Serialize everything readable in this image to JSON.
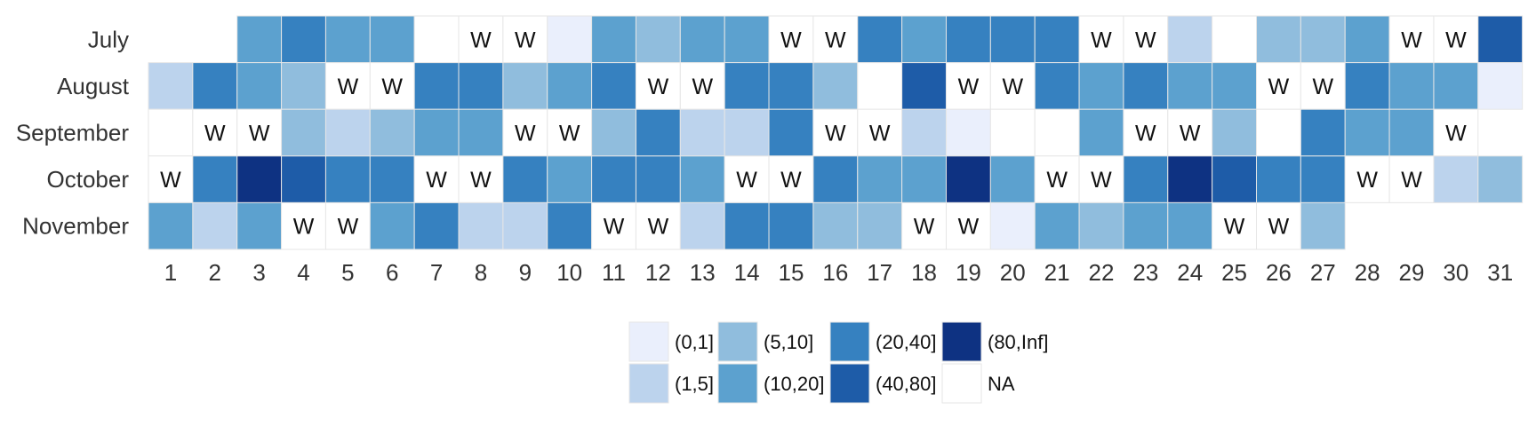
{
  "chart_data": {
    "type": "heatmap",
    "title": "",
    "xlabel": "",
    "ylabel": "",
    "months": [
      "July",
      "August",
      "September",
      "October",
      "November"
    ],
    "days": [
      1,
      2,
      3,
      4,
      5,
      6,
      7,
      8,
      9,
      10,
      11,
      12,
      13,
      14,
      15,
      16,
      17,
      18,
      19,
      20,
      21,
      22,
      23,
      24,
      25,
      26,
      27,
      28,
      29,
      30,
      31
    ],
    "weekend_marker": "W",
    "legend": {
      "bins": [
        "(0,1]",
        "(1,5]",
        "(5,10]",
        "(10,20]",
        "(20,40]",
        "(40,80]",
        "(80,Inf]",
        "NA"
      ],
      "colors": {
        "(0,1]": "#eaeffc",
        "(1,5]": "#bcd3ed",
        "(5,10]": "#90bddd",
        "(10,20]": "#5ca1cf",
        "(20,40]": "#3681c0",
        "(40,80]": "#1e5ca8",
        "(80,Inf]": "#0e3282",
        "NA": "#ffffff"
      }
    },
    "cells": {
      "July": [
        "none",
        "none",
        "(10,20]",
        "(20,40]",
        "(10,20]",
        "(10,20]",
        "NA",
        "W",
        "W",
        "(0,1]",
        "(10,20]",
        "(5,10]",
        "(10,20]",
        "(10,20]",
        "W",
        "W",
        "(20,40]",
        "(10,20]",
        "(20,40]",
        "(20,40]",
        "(20,40]",
        "W",
        "W",
        "(1,5]",
        "NA",
        "(5,10]",
        "(5,10]",
        "(10,20]",
        "W",
        "W",
        "(40,80]"
      ],
      "August": [
        "(1,5]",
        "(20,40]",
        "(10,20]",
        "(5,10]",
        "W",
        "W",
        "(20,40]",
        "(20,40]",
        "(5,10]",
        "(10,20]",
        "(20,40]",
        "W",
        "W",
        "(20,40]",
        "(20,40]",
        "(5,10]",
        "NA",
        "(40,80]",
        "W",
        "W",
        "(20,40]",
        "(10,20]",
        "(20,40]",
        "(10,20]",
        "(10,20]",
        "W",
        "W",
        "(20,40]",
        "(10,20]",
        "(10,20]",
        "(0,1]"
      ],
      "September": [
        "NA",
        "W",
        "W",
        "(5,10]",
        "(1,5]",
        "(5,10]",
        "(10,20]",
        "(10,20]",
        "W",
        "W",
        "(5,10]",
        "(20,40]",
        "(1,5]",
        "(1,5]",
        "(20,40]",
        "W",
        "W",
        "(1,5]",
        "(0,1]",
        "NA",
        "NA",
        "(10,20]",
        "W",
        "W",
        "(5,10]",
        "NA",
        "(20,40]",
        "(10,20]",
        "(10,20]",
        "W",
        "none"
      ],
      "October": [
        "W",
        "(20,40]",
        "(80,Inf]",
        "(40,80]",
        "(20,40]",
        "(20,40]",
        "W",
        "W",
        "(20,40]",
        "(10,20]",
        "(20,40]",
        "(20,40]",
        "(10,20]",
        "W",
        "W",
        "(20,40]",
        "(10,20]",
        "(10,20]",
        "(80,Inf]",
        "(10,20]",
        "W",
        "W",
        "(20,40]",
        "(80,Inf]",
        "(40,80]",
        "(20,40]",
        "(20,40]",
        "W",
        "W",
        "(1,5]",
        "(5,10]"
      ],
      "November": [
        "(10,20]",
        "(1,5]",
        "(10,20]",
        "W",
        "W",
        "(10,20]",
        "(20,40]",
        "(1,5]",
        "(1,5]",
        "(20,40]",
        "W",
        "W",
        "(1,5]",
        "(20,40]",
        "(20,40]",
        "(5,10]",
        "(5,10]",
        "W",
        "W",
        "(0,1]",
        "(10,20]",
        "(5,10]",
        "(10,20]",
        "(10,20]",
        "W",
        "W",
        "(5,10]",
        "none",
        "none",
        "none",
        "none"
      ]
    }
  }
}
